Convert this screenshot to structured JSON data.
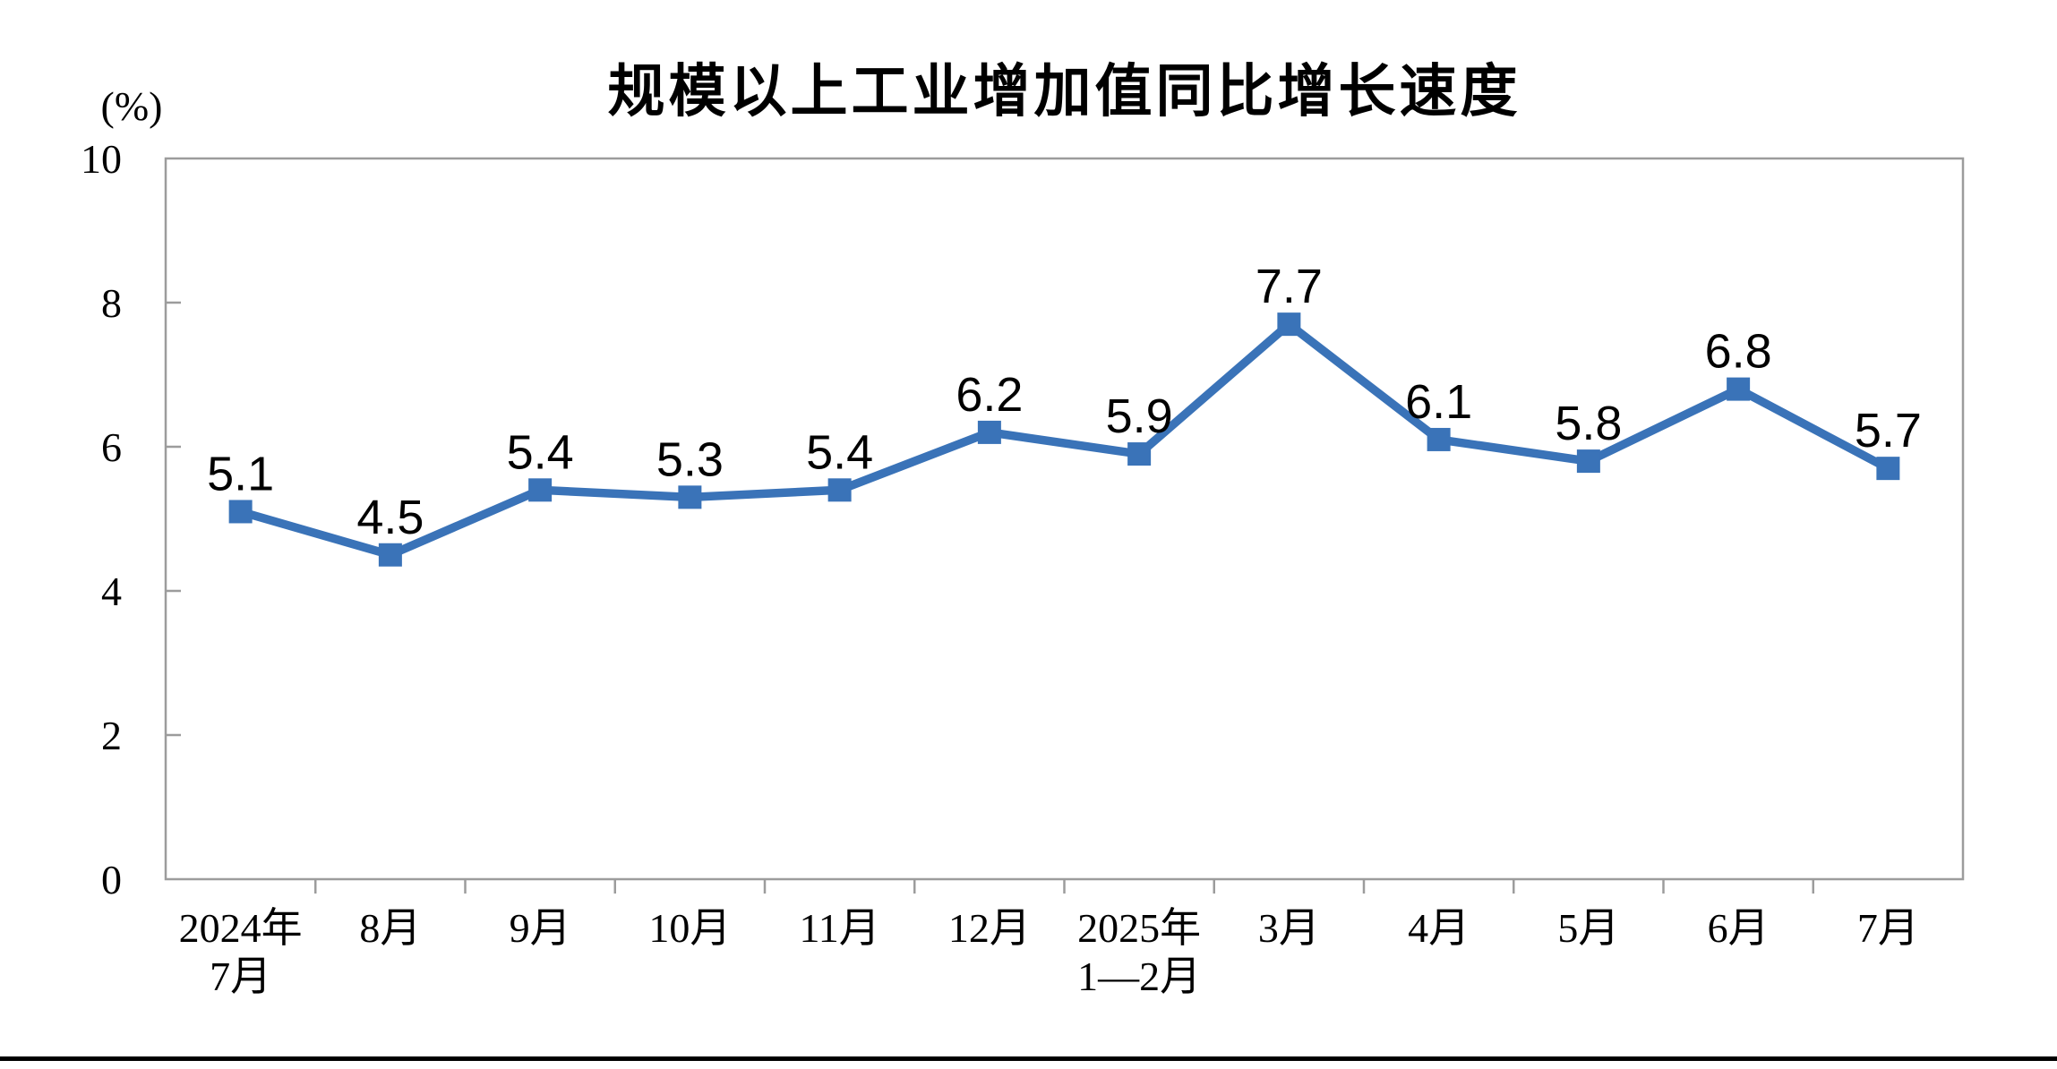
{
  "chart_data": {
    "type": "line",
    "title": "规模以上工业增加值同比增长速度",
    "unit_label": "(%)",
    "categories": [
      "2024年\n7月",
      "8月",
      "9月",
      "10月",
      "11月",
      "12月",
      "2025年\n1—2月",
      "3月",
      "4月",
      "5月",
      "6月",
      "7月"
    ],
    "values": [
      5.1,
      4.5,
      5.4,
      5.3,
      5.4,
      6.2,
      5.9,
      7.7,
      6.1,
      5.8,
      6.8,
      5.7
    ],
    "point_labels": [
      "5.1",
      "4.5",
      "5.4",
      "5.3",
      "5.4",
      "6.2",
      "5.9",
      "7.7",
      "6.1",
      "5.8",
      "6.8",
      "5.7"
    ],
    "xlabel": "",
    "ylabel": "(%)",
    "ylim": [
      0,
      10
    ],
    "yticks": [
      0,
      2,
      4,
      6,
      8,
      10
    ],
    "grid": false,
    "legend": "none",
    "marker": "square",
    "line_color": "#3A73B8",
    "axis_color": "#9C9C9C",
    "text_color": "#000000"
  },
  "footer": {
    "rule_color": "#000000"
  }
}
